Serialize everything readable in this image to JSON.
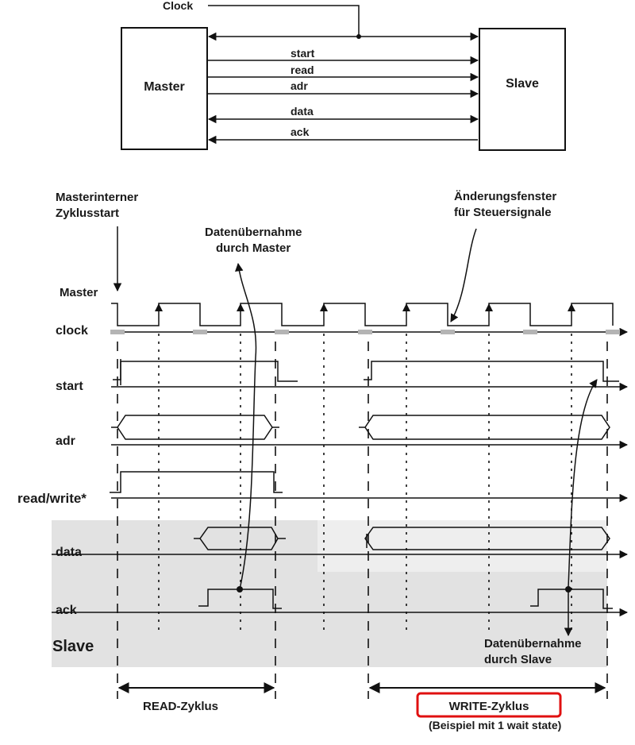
{
  "block_diagram": {
    "clock_label": "Clock",
    "master_label": "Master",
    "slave_label": "Slave",
    "signals": [
      "start",
      "read",
      "adr",
      "data",
      "ack"
    ]
  },
  "timing": {
    "annot_cycle_start": [
      "Masterinterner",
      "Zyklusstart"
    ],
    "annot_master_capture": [
      "Datenübernahme",
      "durch Master"
    ],
    "annot_change_window": [
      "Änderungsfenster",
      "für Steuersignale"
    ],
    "annot_slave_capture": [
      "Datenübernahme",
      "durch Slave"
    ],
    "master_side_label": "Master",
    "slave_side_label": "Slave",
    "signal_labels": [
      "clock",
      "start",
      "adr",
      "read/write*",
      "data",
      "ack"
    ],
    "read_cycle_label": "READ-Zyklus",
    "write_cycle_label": "WRITE-Zyklus",
    "write_cycle_note": "(Beispiel mit 1 wait state)"
  },
  "colors": {
    "line": "#111111",
    "slave_region": "#e2e2e2",
    "highlight_box": "#e01010",
    "change_window_mark": "#b4b4b4"
  }
}
